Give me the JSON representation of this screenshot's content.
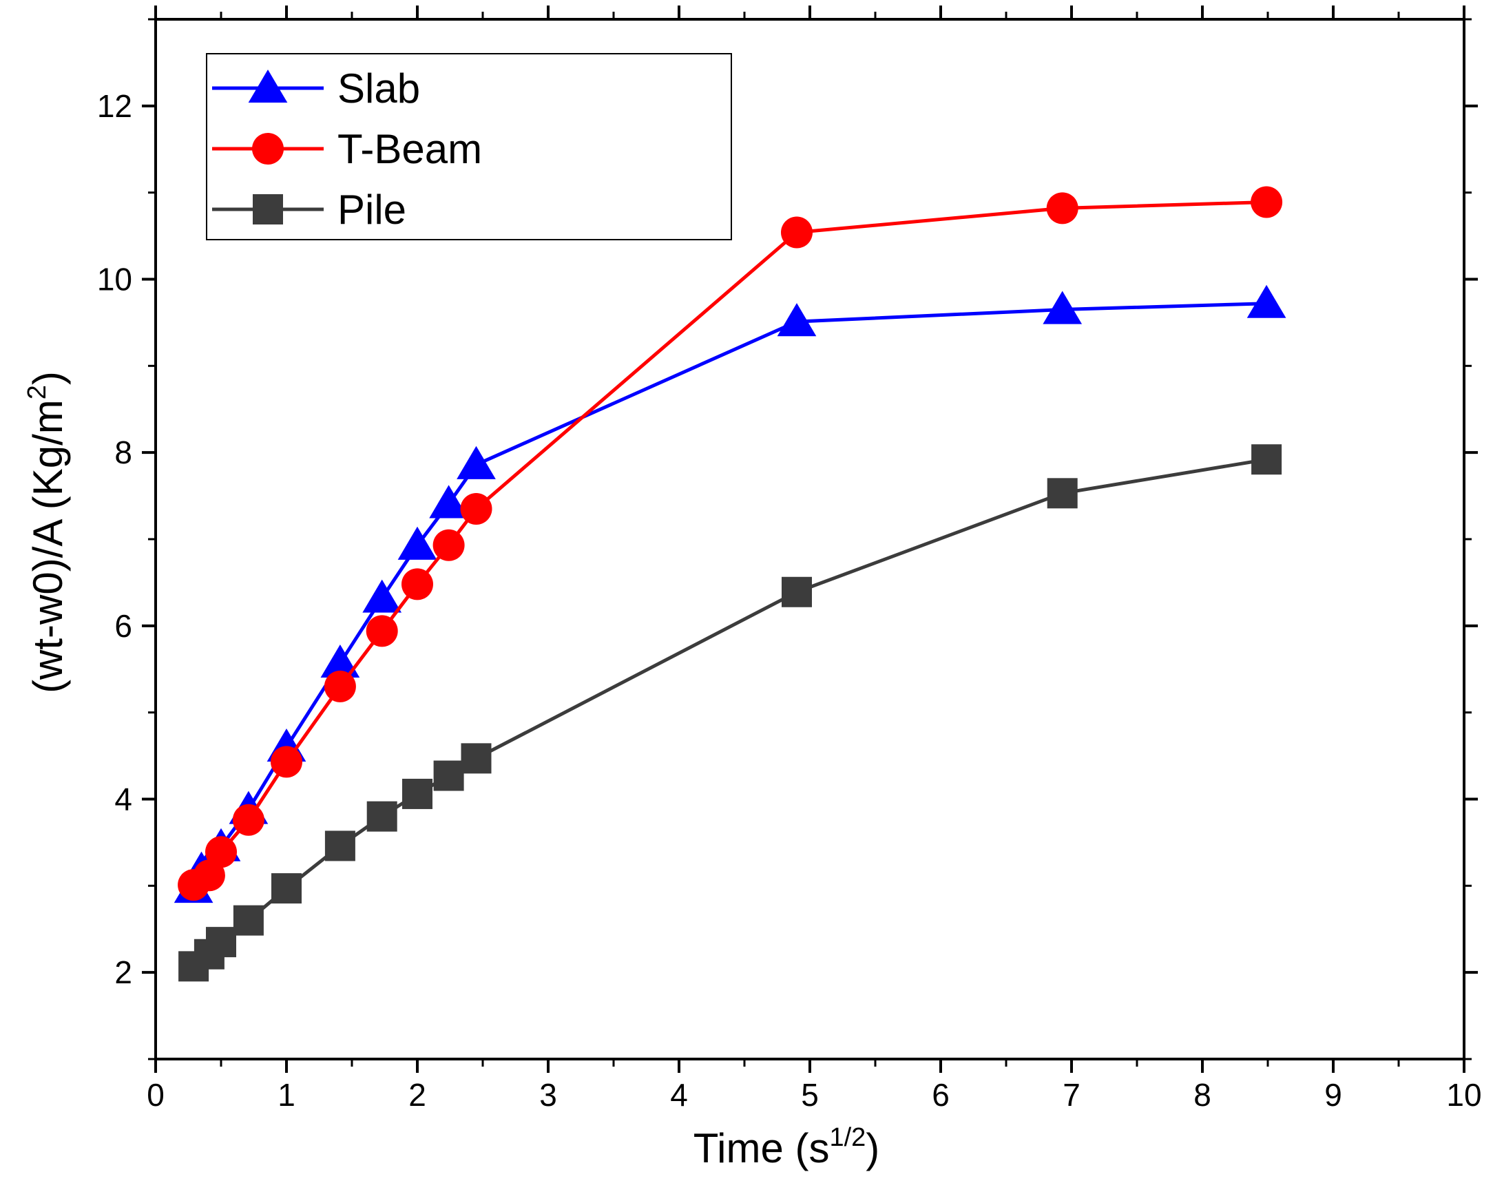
{
  "chart_data": {
    "type": "line",
    "xlabel": "Time (s",
    "xlabel_sup": "1/2",
    "xlabel_end": ")",
    "ylabel": "(wt-w0)/A (Kg/m",
    "ylabel_sup": "2",
    "ylabel_end": ")",
    "xlim": [
      0,
      10
    ],
    "ylim": [
      1,
      13
    ],
    "xticks": [
      0,
      1,
      2,
      3,
      4,
      5,
      6,
      7,
      8,
      9,
      10
    ],
    "yticks": [
      2,
      4,
      6,
      8,
      10,
      12
    ],
    "grid": false,
    "legend_position": "top-left",
    "series": [
      {
        "name": "Slab",
        "color": "#0000ff",
        "marker": "triangle",
        "x": [
          0.29,
          0.35,
          0.5,
          0.71,
          1.0,
          1.41,
          1.73,
          2.0,
          2.24,
          2.45,
          4.9,
          6.93,
          8.49
        ],
        "y": [
          2.97,
          3.18,
          3.45,
          3.88,
          4.6,
          5.57,
          6.32,
          6.93,
          7.41,
          7.86,
          9.51,
          9.65,
          9.72
        ]
      },
      {
        "name": "T-Beam",
        "color": "#ff0000",
        "marker": "circle",
        "x": [
          0.29,
          0.41,
          0.5,
          0.71,
          1.0,
          1.41,
          1.73,
          2.0,
          2.24,
          2.45,
          4.9,
          6.93,
          8.49
        ],
        "y": [
          3.01,
          3.12,
          3.39,
          3.76,
          4.43,
          5.3,
          5.94,
          6.48,
          6.93,
          7.35,
          10.54,
          10.82,
          10.89
        ]
      },
      {
        "name": "Pile",
        "color": "#3c3c3c",
        "marker": "square",
        "x": [
          0.29,
          0.41,
          0.5,
          0.71,
          1.0,
          1.41,
          1.73,
          2.0,
          2.24,
          2.45,
          4.9,
          6.93,
          8.49
        ],
        "y": [
          2.07,
          2.21,
          2.35,
          2.6,
          2.97,
          3.46,
          3.8,
          4.06,
          4.27,
          4.47,
          6.39,
          7.53,
          7.92
        ]
      }
    ]
  }
}
